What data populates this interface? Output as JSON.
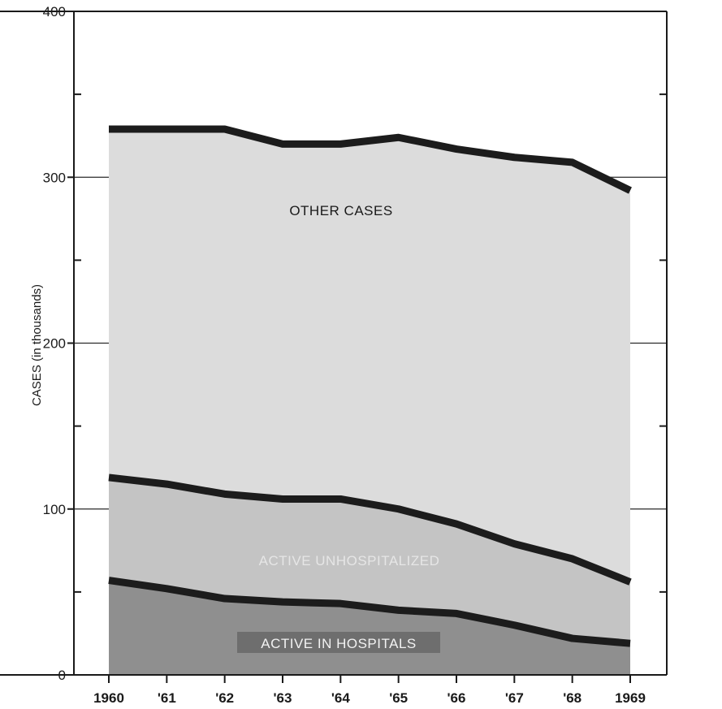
{
  "chart_data": {
    "type": "area",
    "title": "",
    "xlabel": "",
    "ylabel": "CASES (in thousands)",
    "ylim": [
      0,
      400
    ],
    "yticks_major": [
      0,
      100,
      200,
      300,
      400
    ],
    "yticks_minor": [
      50,
      150,
      250,
      350
    ],
    "grid": true,
    "categories": [
      "1960",
      "'61",
      "'62",
      "'63",
      "'64",
      "'65",
      "'66",
      "'67",
      "'68",
      "1969"
    ],
    "x": [
      1960,
      1961,
      1962,
      1963,
      1964,
      1965,
      1966,
      1967,
      1968,
      1969
    ],
    "series": [
      {
        "name": "ACTIVE IN HOSPITALS",
        "values": [
          57,
          52,
          46,
          44,
          43,
          39,
          37,
          30,
          22,
          19
        ]
      },
      {
        "name": "ACTIVE UNHOSPITALIZED",
        "values": [
          62,
          63,
          63,
          62,
          63,
          61,
          54,
          49,
          48,
          37
        ]
      },
      {
        "name": "OTHER CASES",
        "values": [
          210,
          214,
          220,
          214,
          214,
          224,
          226,
          233,
          239,
          236
        ]
      }
    ],
    "totals": [
      329,
      329,
      329,
      320,
      320,
      324,
      317,
      312,
      309,
      292
    ],
    "colors": {
      "hospitals": "#8f8f8f",
      "unhospitalized": "#c4c4c4",
      "other": "#dcdcdc",
      "line": "#1c1c1c",
      "hospitals_label": "#f2f2f2",
      "unhospitalized_label": "#e6e6e6",
      "other_label": "#1a1a1a"
    }
  }
}
